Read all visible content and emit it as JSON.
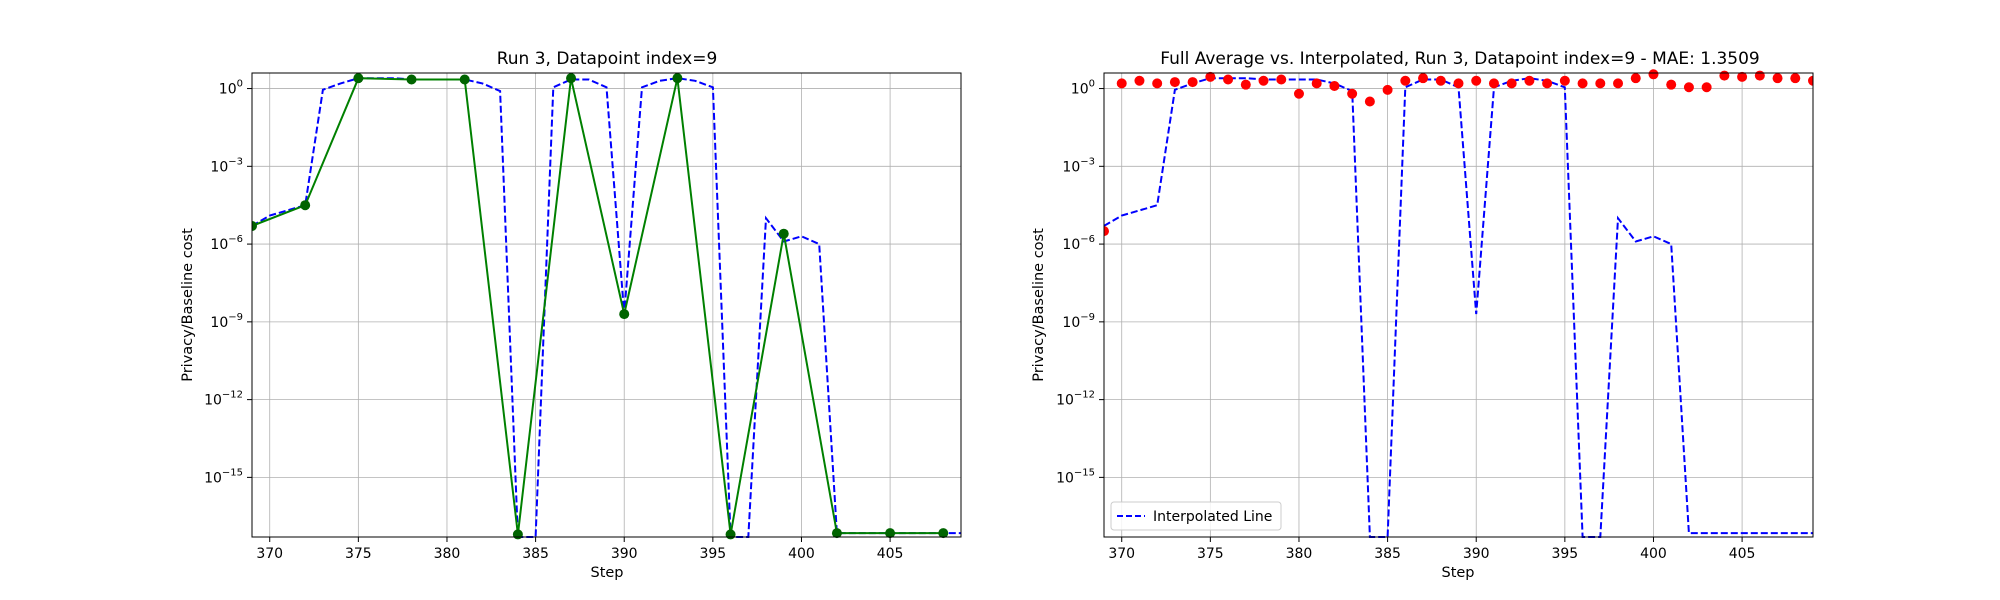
{
  "chart_data": [
    {
      "type": "line",
      "title": "Run 3, Datapoint index=9",
      "xlabel": "Step",
      "ylabel": "Privacy/Baseline cost",
      "yscale": "log",
      "xlim": [
        369,
        409
      ],
      "ylim_log10": [
        -17.3,
        0.6
      ],
      "grid": true,
      "xticks": [
        "370",
        "375",
        "380",
        "385",
        "390",
        "395",
        "400",
        "405"
      ],
      "yticks": [
        {
          "base": "10",
          "exp": "0"
        },
        {
          "base": "10",
          "exp": "−3"
        },
        {
          "base": "10",
          "exp": "−6"
        },
        {
          "base": "10",
          "exp": "−9"
        },
        {
          "base": "10",
          "exp": "−12"
        },
        {
          "base": "10",
          "exp": "−15"
        }
      ],
      "series": [
        {
          "style": "dashed",
          "color": "#0000ff",
          "x": [
            369,
            370,
            371,
            372,
            373,
            374,
            375,
            376,
            377,
            378,
            379,
            380,
            381,
            382,
            383,
            384,
            385,
            386,
            387,
            388,
            389,
            390,
            391,
            392,
            393,
            394,
            395,
            396,
            397,
            398,
            399,
            400,
            401,
            402,
            403,
            404,
            405,
            406,
            407,
            408,
            409
          ],
          "log10_y": [
            -5.3,
            -4.9,
            -4.7,
            -4.5,
            -0.05,
            0.2,
            0.4,
            0.4,
            0.4,
            0.35,
            0.35,
            0.35,
            0.35,
            0.2,
            -0.1,
            -17.3,
            -17.3,
            0.05,
            0.35,
            0.35,
            0.05,
            -8.7,
            0.05,
            0.3,
            0.4,
            0.3,
            0.05,
            -17.3,
            -17.3,
            -5.0,
            -5.9,
            -5.7,
            -6.0,
            -17.15,
            -17.15,
            -17.15,
            -17.15,
            -17.15,
            -17.15,
            -17.15,
            -17.15
          ]
        },
        {
          "style": "solid-markers",
          "color": "#008000",
          "x": [
            369,
            372,
            375,
            378,
            381,
            384,
            387,
            390,
            393,
            396,
            399,
            402,
            405,
            408
          ],
          "log10_y": [
            -5.3,
            -4.5,
            0.4,
            0.35,
            0.35,
            -17.2,
            0.4,
            -8.7,
            0.4,
            -17.2,
            -5.6,
            -17.15,
            -17.15,
            -17.15
          ]
        }
      ]
    },
    {
      "type": "line",
      "title": "Full Average vs. Interpolated, Run 3, Datapoint index=9 - MAE: 1.3509",
      "xlabel": "Step",
      "ylabel": "Privacy/Baseline cost",
      "yscale": "log",
      "xlim": [
        369,
        409
      ],
      "ylim_log10": [
        -17.3,
        0.6
      ],
      "grid": true,
      "legend_position": "lower-left",
      "xticks": [
        "370",
        "375",
        "380",
        "385",
        "390",
        "395",
        "400",
        "405"
      ],
      "yticks": [
        {
          "base": "10",
          "exp": "0"
        },
        {
          "base": "10",
          "exp": "−3"
        },
        {
          "base": "10",
          "exp": "−6"
        },
        {
          "base": "10",
          "exp": "−9"
        },
        {
          "base": "10",
          "exp": "−12"
        },
        {
          "base": "10",
          "exp": "−15"
        }
      ],
      "series": [
        {
          "name": "Interpolated Line",
          "style": "dashed",
          "color": "#0000ff",
          "x": [
            369,
            370,
            371,
            372,
            373,
            374,
            375,
            376,
            377,
            378,
            379,
            380,
            381,
            382,
            383,
            384,
            385,
            386,
            387,
            388,
            389,
            390,
            391,
            392,
            393,
            394,
            395,
            396,
            397,
            398,
            399,
            400,
            401,
            402,
            403,
            404,
            405,
            406,
            407,
            408,
            409
          ],
          "log10_y": [
            -5.3,
            -4.9,
            -4.7,
            -4.5,
            -0.05,
            0.2,
            0.4,
            0.4,
            0.4,
            0.35,
            0.35,
            0.35,
            0.35,
            0.2,
            -0.1,
            -17.3,
            -17.3,
            0.05,
            0.35,
            0.35,
            0.05,
            -8.7,
            0.05,
            0.3,
            0.4,
            0.3,
            0.05,
            -17.3,
            -17.3,
            -5.0,
            -5.9,
            -5.7,
            -6.0,
            -17.15,
            -17.15,
            -17.15,
            -17.15,
            -17.15,
            -17.15,
            -17.15,
            -17.15
          ]
        },
        {
          "style": "points",
          "color": "#ff0000",
          "x": [
            369,
            370,
            371,
            372,
            373,
            374,
            375,
            376,
            377,
            378,
            379,
            380,
            381,
            382,
            383,
            384,
            385,
            386,
            387,
            388,
            389,
            390,
            391,
            392,
            393,
            394,
            395,
            396,
            397,
            398,
            399,
            400,
            401,
            402,
            403,
            404,
            405,
            406,
            407,
            408,
            409
          ],
          "log10_y": [
            -5.5,
            0.2,
            0.3,
            0.2,
            0.25,
            0.25,
            0.45,
            0.35,
            0.15,
            0.3,
            0.35,
            -0.2,
            0.2,
            0.1,
            -0.2,
            -0.5,
            -0.05,
            0.3,
            0.4,
            0.3,
            0.2,
            0.3,
            0.2,
            0.2,
            0.3,
            0.2,
            0.3,
            0.2,
            0.2,
            0.2,
            0.4,
            0.55,
            0.15,
            0.05,
            0.05,
            0.5,
            0.45,
            0.5,
            0.4,
            0.4,
            0.3
          ]
        }
      ]
    }
  ]
}
